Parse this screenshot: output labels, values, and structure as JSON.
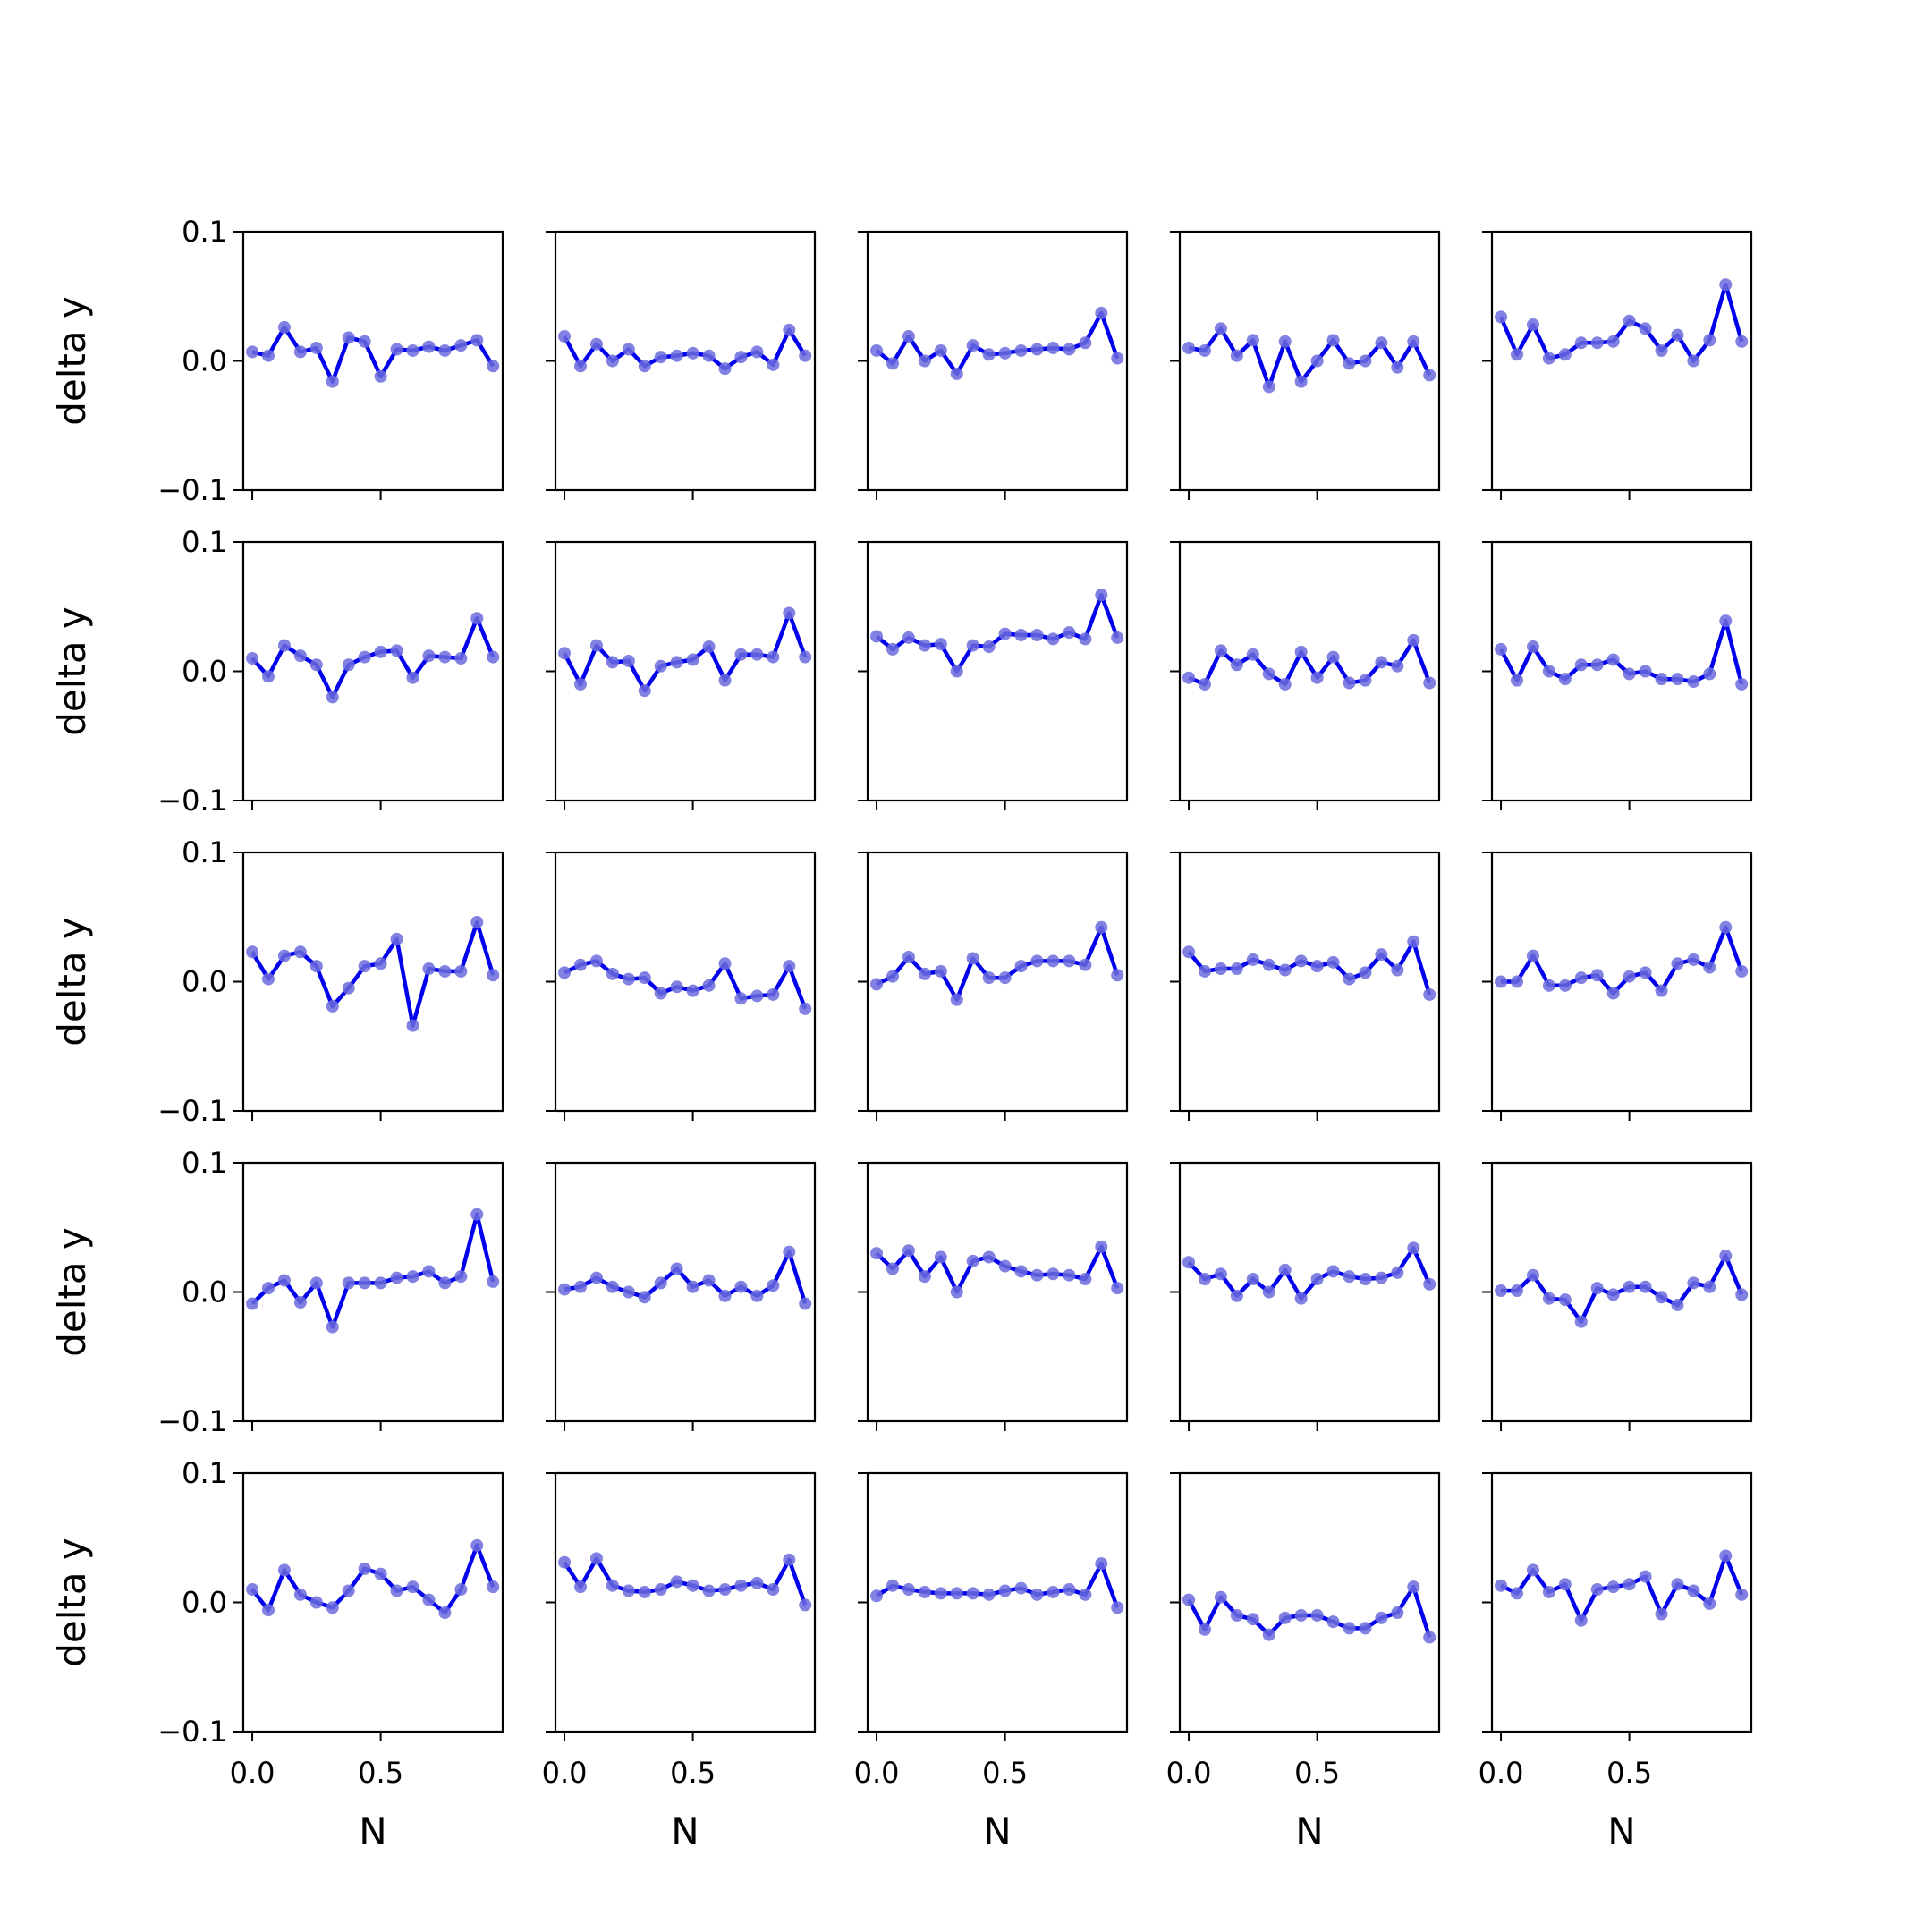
{
  "figure": {
    "xlabel": "N",
    "ylabel": "delta y",
    "line_color": "#0000ee",
    "marker_color": "#6b6bdd"
  },
  "chart_data": {
    "type": "line",
    "rows": 5,
    "cols": 5,
    "xlim": [
      -0.035,
      0.975
    ],
    "ylim": [
      -0.1,
      0.1
    ],
    "xticks": [
      0.0,
      0.5
    ],
    "xtick_labels": [
      "0.0",
      "0.5"
    ],
    "yticks": [
      -0.1,
      0.0,
      0.1
    ],
    "ytick_labels": [
      "−0.1",
      "0.0",
      "0.1"
    ],
    "x": [
      0.0,
      0.0625,
      0.125,
      0.1875,
      0.25,
      0.3125,
      0.375,
      0.4375,
      0.5,
      0.5625,
      0.625,
      0.6875,
      0.75,
      0.8125,
      0.875,
      0.9375
    ],
    "panels": [
      {
        "values": [
          0.007,
          0.004,
          0.026,
          0.007,
          0.01,
          -0.016,
          0.018,
          0.015,
          -0.012,
          0.009,
          0.008,
          0.011,
          0.008,
          0.012,
          0.016,
          -0.004
        ]
      },
      {
        "values": [
          0.019,
          -0.004,
          0.013,
          0.0,
          0.009,
          -0.004,
          0.003,
          0.004,
          0.006,
          0.004,
          -0.006,
          0.003,
          0.007,
          -0.003,
          0.024,
          0.004
        ]
      },
      {
        "values": [
          0.008,
          -0.002,
          0.019,
          0.0,
          0.008,
          -0.01,
          0.012,
          0.005,
          0.006,
          0.008,
          0.009,
          0.01,
          0.009,
          0.014,
          0.037,
          0.002
        ]
      },
      {
        "values": [
          0.01,
          0.008,
          0.025,
          0.004,
          0.016,
          -0.02,
          0.015,
          -0.016,
          0.0,
          0.016,
          -0.002,
          0.0,
          0.014,
          -0.005,
          0.015,
          -0.011
        ]
      },
      {
        "values": [
          0.034,
          0.005,
          0.028,
          0.002,
          0.005,
          0.014,
          0.014,
          0.015,
          0.031,
          0.025,
          0.008,
          0.02,
          0.0,
          0.016,
          0.059,
          0.015
        ]
      },
      {
        "values": [
          0.01,
          -0.004,
          0.02,
          0.012,
          0.005,
          -0.02,
          0.005,
          0.011,
          0.015,
          0.016,
          -0.005,
          0.012,
          0.011,
          0.01,
          0.041,
          0.011
        ]
      },
      {
        "values": [
          0.014,
          -0.01,
          0.02,
          0.007,
          0.008,
          -0.015,
          0.004,
          0.007,
          0.009,
          0.019,
          -0.007,
          0.013,
          0.013,
          0.011,
          0.045,
          0.011
        ]
      },
      {
        "values": [
          0.027,
          0.017,
          0.026,
          0.02,
          0.021,
          0.0,
          0.02,
          0.019,
          0.029,
          0.028,
          0.028,
          0.025,
          0.03,
          0.025,
          0.059,
          0.026
        ]
      },
      {
        "values": [
          -0.005,
          -0.01,
          0.016,
          0.005,
          0.013,
          -0.002,
          -0.01,
          0.015,
          -0.005,
          0.011,
          -0.009,
          -0.007,
          0.007,
          0.004,
          0.024,
          -0.009
        ]
      },
      {
        "values": [
          0.017,
          -0.007,
          0.019,
          0.0,
          -0.006,
          0.005,
          0.005,
          0.009,
          -0.002,
          0.0,
          -0.006,
          -0.006,
          -0.008,
          -0.002,
          0.039,
          -0.01
        ]
      },
      {
        "values": [
          0.023,
          0.002,
          0.02,
          0.023,
          0.012,
          -0.019,
          -0.005,
          0.012,
          0.014,
          0.033,
          -0.034,
          0.01,
          0.008,
          0.008,
          0.046,
          0.005
        ]
      },
      {
        "values": [
          0.007,
          0.013,
          0.016,
          0.006,
          0.002,
          0.003,
          -0.009,
          -0.004,
          -0.007,
          -0.003,
          0.014,
          -0.013,
          -0.011,
          -0.01,
          0.012,
          -0.021
        ]
      },
      {
        "values": [
          -0.002,
          0.004,
          0.019,
          0.006,
          0.008,
          -0.014,
          0.018,
          0.003,
          0.003,
          0.012,
          0.016,
          0.016,
          0.016,
          0.013,
          0.042,
          0.005
        ]
      },
      {
        "values": [
          0.023,
          0.008,
          0.01,
          0.01,
          0.017,
          0.013,
          0.009,
          0.016,
          0.012,
          0.015,
          0.002,
          0.007,
          0.021,
          0.009,
          0.031,
          -0.01
        ]
      },
      {
        "values": [
          0.0,
          0.0,
          0.02,
          -0.003,
          -0.003,
          0.003,
          0.005,
          -0.009,
          0.004,
          0.007,
          -0.007,
          0.014,
          0.017,
          0.011,
          0.042,
          0.008
        ]
      },
      {
        "values": [
          -0.009,
          0.003,
          0.009,
          -0.008,
          0.007,
          -0.027,
          0.007,
          0.007,
          0.007,
          0.011,
          0.012,
          0.016,
          0.007,
          0.012,
          0.06,
          0.008
        ]
      },
      {
        "values": [
          0.002,
          0.004,
          0.011,
          0.004,
          0.0,
          -0.004,
          0.007,
          0.018,
          0.004,
          0.009,
          -0.003,
          0.004,
          -0.003,
          0.005,
          0.031,
          -0.009
        ]
      },
      {
        "values": [
          0.03,
          0.018,
          0.032,
          0.012,
          0.027,
          0.0,
          0.024,
          0.027,
          0.02,
          0.016,
          0.013,
          0.014,
          0.013,
          0.01,
          0.035,
          0.003
        ]
      },
      {
        "values": [
          0.023,
          0.01,
          0.014,
          -0.003,
          0.01,
          0.0,
          0.017,
          -0.005,
          0.01,
          0.016,
          0.012,
          0.01,
          0.011,
          0.015,
          0.034,
          0.006
        ]
      },
      {
        "values": [
          0.001,
          0.001,
          0.013,
          -0.005,
          -0.006,
          -0.023,
          0.003,
          -0.002,
          0.004,
          0.004,
          -0.004,
          -0.01,
          0.007,
          0.004,
          0.028,
          -0.002
        ]
      },
      {
        "values": [
          0.01,
          -0.006,
          0.025,
          0.006,
          0.0,
          -0.004,
          0.009,
          0.026,
          0.022,
          0.009,
          0.012,
          0.002,
          -0.008,
          0.01,
          0.044,
          0.012
        ]
      },
      {
        "values": [
          0.031,
          0.012,
          0.034,
          0.013,
          0.009,
          0.008,
          0.01,
          0.016,
          0.013,
          0.009,
          0.01,
          0.013,
          0.015,
          0.01,
          0.033,
          -0.002
        ]
      },
      {
        "values": [
          0.005,
          0.013,
          0.01,
          0.008,
          0.007,
          0.007,
          0.007,
          0.006,
          0.009,
          0.011,
          0.006,
          0.008,
          0.01,
          0.006,
          0.03,
          -0.004
        ]
      },
      {
        "values": [
          0.002,
          -0.021,
          0.004,
          -0.01,
          -0.013,
          -0.025,
          -0.012,
          -0.01,
          -0.01,
          -0.015,
          -0.02,
          -0.02,
          -0.012,
          -0.008,
          0.012,
          -0.027
        ]
      },
      {
        "values": [
          0.013,
          0.007,
          0.025,
          0.008,
          0.014,
          -0.014,
          0.01,
          0.012,
          0.014,
          0.02,
          -0.009,
          0.014,
          0.009,
          -0.001,
          0.036,
          0.006
        ]
      }
    ]
  }
}
